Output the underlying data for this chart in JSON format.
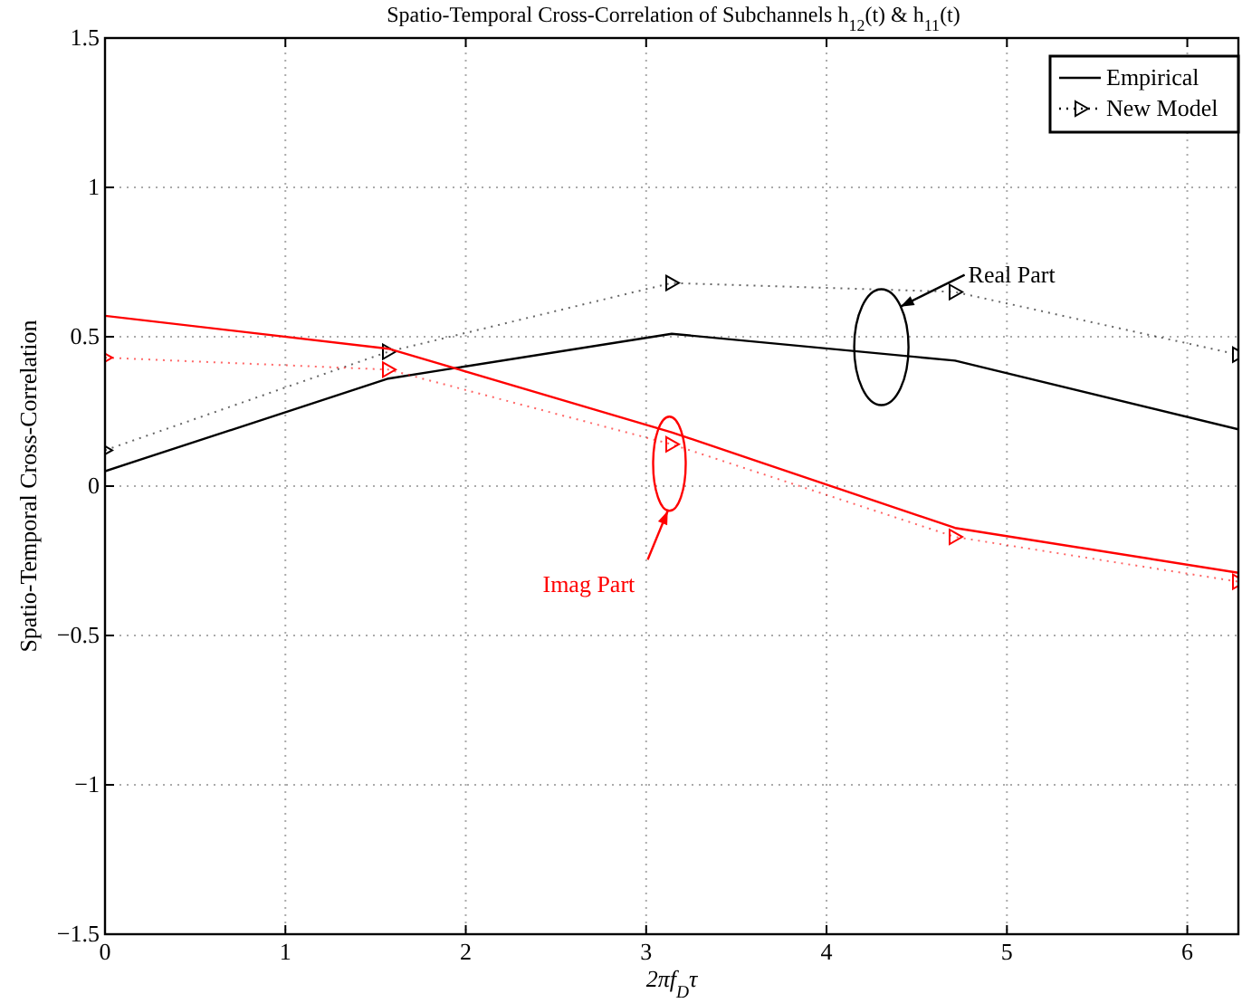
{
  "chart_data": {
    "type": "line",
    "title": "Spatio-Temporal Cross-Correlation of Subchannels h$_{12}$(t) & h$_{11}$(t)",
    "xlabel": "2πf$_{D}$τ",
    "ylabel": "Spatio-Temporal Cross-Correlation",
    "x": [
      0,
      1.5708,
      3.1416,
      4.7124,
      6.2832
    ],
    "series": [
      {
        "name": "Empirical",
        "color": "#000000",
        "values": [
          0.05,
          0.36,
          0.51,
          0.42,
          0.19
        ],
        "marker": "none",
        "line_style": "solid"
      },
      {
        "name": "New Model",
        "color": "#000000",
        "values": [
          0.12,
          0.45,
          0.68,
          0.65,
          0.44
        ],
        "marker": "triangle",
        "line_style": "dotted"
      },
      {
        "color": "#ff0000",
        "values": [
          0.57,
          0.46,
          0.18,
          -0.14,
          -0.29
        ],
        "marker": "none",
        "line_style": "solid"
      },
      {
        "color": "#ff0000",
        "values": [
          0.43,
          0.39,
          0.14,
          -0.17,
          -0.32
        ],
        "marker": "triangle",
        "line_style": "dotted"
      }
    ],
    "xlim": [
      0,
      6.2832
    ],
    "xticks": [
      0,
      1,
      2,
      3,
      4,
      5,
      6
    ],
    "ylim": [
      -1.5,
      1.5
    ],
    "yticks": [
      -1.5,
      -1,
      -0.5,
      0,
      0.5,
      1,
      1.5
    ],
    "grid": true,
    "legend": "top right",
    "annotations": [
      "Real Part",
      "Imag Part"
    ]
  }
}
